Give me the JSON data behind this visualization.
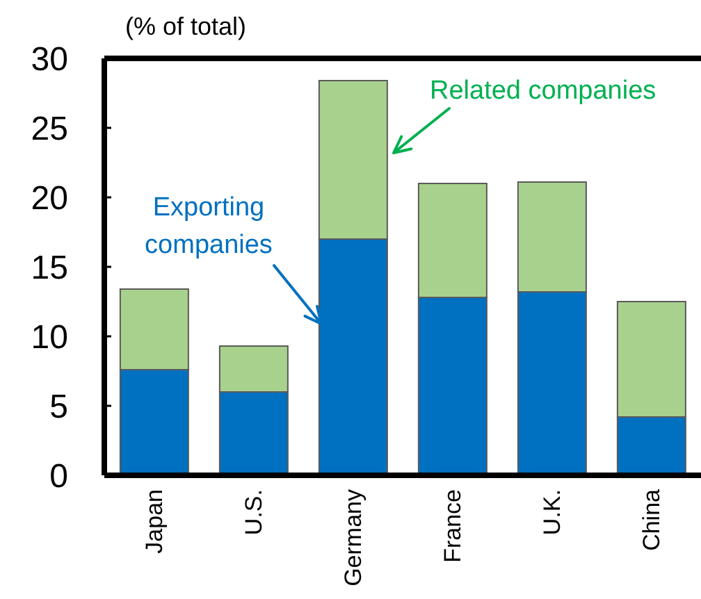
{
  "chart_data": {
    "type": "bar",
    "stacked": true,
    "ylabel": "(% of total)",
    "categories": [
      "Japan",
      "U.S.",
      "Germany",
      "France",
      "U.K.",
      "China"
    ],
    "series": [
      {
        "name": "Exporting companies",
        "color": "#0070c0",
        "values": [
          7.6,
          6.0,
          17.0,
          12.8,
          13.2,
          4.2
        ]
      },
      {
        "name": "Related companies",
        "color": "#a9d18e",
        "values": [
          5.8,
          3.3,
          11.4,
          8.2,
          7.9,
          8.3
        ]
      }
    ],
    "ylim": [
      0,
      30
    ],
    "yticks": [
      0,
      5,
      10,
      15,
      20,
      25,
      30
    ]
  }
}
